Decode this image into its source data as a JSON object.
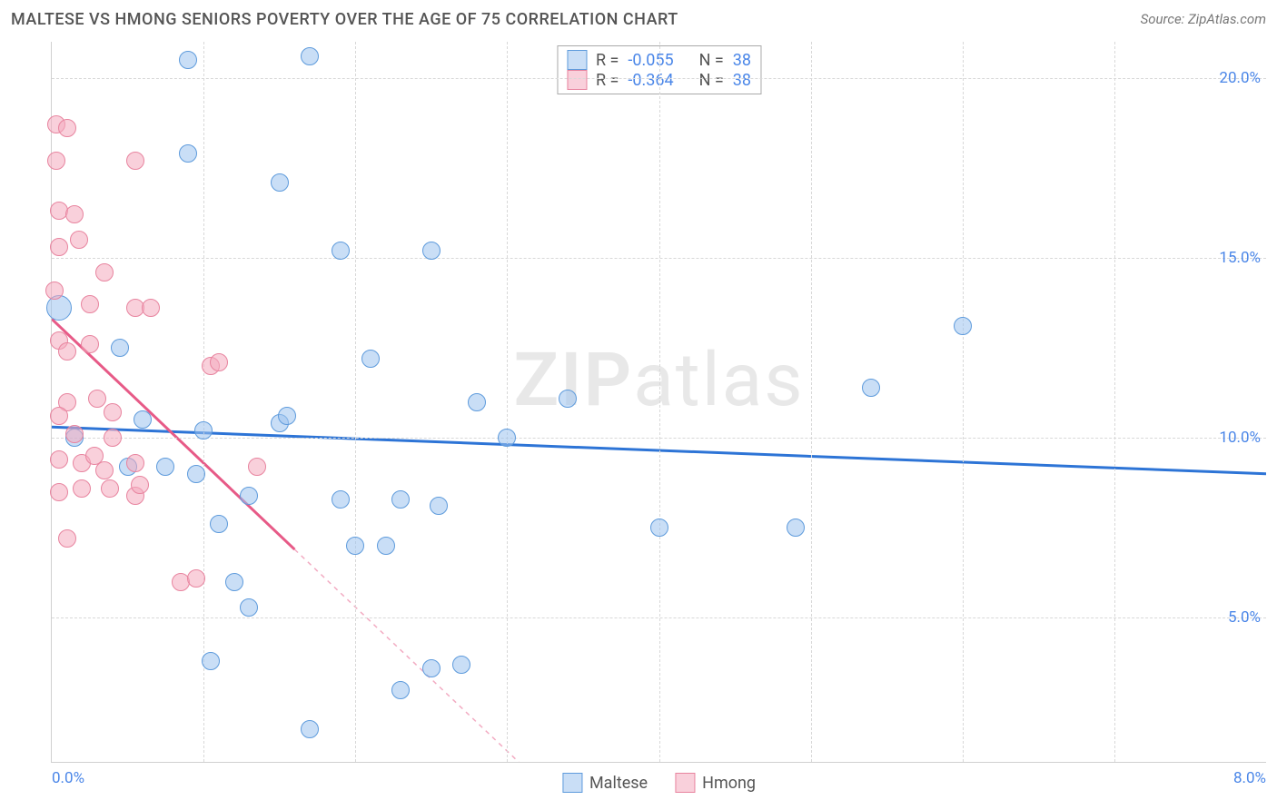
{
  "header": {
    "title": "MALTESE VS HMONG SENIORS POVERTY OVER THE AGE OF 75 CORRELATION CHART",
    "source": "Source: ZipAtlas.com"
  },
  "chart": {
    "type": "scatter",
    "ylabel": "Seniors Poverty Over the Age of 75",
    "xmin": 0.0,
    "xmax": 8.0,
    "ymin": 0.0,
    "ymax": 21.0,
    "ylim_visible_min": 1.0,
    "yticks": [
      5.0,
      10.0,
      15.0,
      20.0
    ],
    "ytick_labels": [
      "5.0%",
      "10.0%",
      "15.0%",
      "20.0%"
    ],
    "xgrid": [
      1.0,
      2.0,
      3.0,
      4.0,
      5.0,
      6.0,
      7.0
    ],
    "xtick_left": "0.0%",
    "xtick_right": "8.0%",
    "background_color": "#ffffff",
    "grid_color": "#d8d8d8",
    "axis_color": "#d0d0d0",
    "tick_color": "#4a86e8",
    "label_fontsize": 18,
    "tick_fontsize": 17,
    "watermark": {
      "zip": "ZIP",
      "atlas": "atlas",
      "color": "#e8e8e8",
      "fontsize": 82
    },
    "series": [
      {
        "name": "Maltese",
        "R": "-0.055",
        "N": "38",
        "point_fill": "rgba(157,195,238,0.55)",
        "point_stroke": "#5e9bdc",
        "point_radius": 10,
        "trend_color": "#2d74d6",
        "trend_width": 3,
        "trend": {
          "x1": 0.0,
          "y1": 10.3,
          "x2": 8.0,
          "y2": 9.0,
          "dashed_from_x": 8.0
        },
        "points": [
          {
            "x": 0.05,
            "y": 13.6,
            "r": 14
          },
          {
            "x": 0.9,
            "y": 20.5
          },
          {
            "x": 1.7,
            "y": 20.6
          },
          {
            "x": 0.9,
            "y": 17.9
          },
          {
            "x": 1.5,
            "y": 17.1
          },
          {
            "x": 1.9,
            "y": 15.2
          },
          {
            "x": 2.5,
            "y": 15.2
          },
          {
            "x": 2.1,
            "y": 12.2
          },
          {
            "x": 2.8,
            "y": 11.0
          },
          {
            "x": 3.4,
            "y": 11.1
          },
          {
            "x": 0.6,
            "y": 10.5
          },
          {
            "x": 1.0,
            "y": 10.2
          },
          {
            "x": 1.5,
            "y": 10.4
          },
          {
            "x": 1.55,
            "y": 10.6
          },
          {
            "x": 0.5,
            "y": 9.2
          },
          {
            "x": 0.75,
            "y": 9.2
          },
          {
            "x": 0.95,
            "y": 9.0
          },
          {
            "x": 1.3,
            "y": 8.4
          },
          {
            "x": 1.9,
            "y": 8.3
          },
          {
            "x": 2.3,
            "y": 8.3
          },
          {
            "x": 2.55,
            "y": 8.1
          },
          {
            "x": 1.1,
            "y": 7.6
          },
          {
            "x": 2.0,
            "y": 7.0
          },
          {
            "x": 2.2,
            "y": 7.0
          },
          {
            "x": 1.2,
            "y": 6.0
          },
          {
            "x": 1.3,
            "y": 5.3
          },
          {
            "x": 1.05,
            "y": 3.8
          },
          {
            "x": 2.5,
            "y": 3.6
          },
          {
            "x": 2.7,
            "y": 3.7
          },
          {
            "x": 2.3,
            "y": 3.0
          },
          {
            "x": 1.7,
            "y": 1.9
          },
          {
            "x": 4.0,
            "y": 7.5
          },
          {
            "x": 4.9,
            "y": 7.5
          },
          {
            "x": 5.4,
            "y": 11.4
          },
          {
            "x": 6.0,
            "y": 13.1
          },
          {
            "x": 3.0,
            "y": 10.0
          },
          {
            "x": 0.45,
            "y": 12.5
          },
          {
            "x": 0.15,
            "y": 10.0
          }
        ]
      },
      {
        "name": "Hmong",
        "R": "-0.364",
        "N": "38",
        "point_fill": "rgba(244,169,190,0.55)",
        "point_stroke": "#e8849f",
        "point_radius": 10,
        "trend_color": "#e75a87",
        "trend_width": 3,
        "trend": {
          "x1": 0.0,
          "y1": 13.3,
          "x2": 1.6,
          "y2": 6.9,
          "dashed_to_x": 3.1,
          "dashed_to_y": 0.9
        },
        "points": [
          {
            "x": 0.03,
            "y": 18.7
          },
          {
            "x": 0.1,
            "y": 18.6
          },
          {
            "x": 0.03,
            "y": 17.7
          },
          {
            "x": 0.55,
            "y": 17.7
          },
          {
            "x": 0.05,
            "y": 16.3
          },
          {
            "x": 0.15,
            "y": 16.2
          },
          {
            "x": 0.05,
            "y": 15.3
          },
          {
            "x": 0.18,
            "y": 15.5
          },
          {
            "x": 0.35,
            "y": 14.6
          },
          {
            "x": 0.02,
            "y": 14.1
          },
          {
            "x": 0.25,
            "y": 13.7
          },
          {
            "x": 0.55,
            "y": 13.6
          },
          {
            "x": 0.65,
            "y": 13.6
          },
          {
            "x": 0.05,
            "y": 12.7
          },
          {
            "x": 0.1,
            "y": 12.4
          },
          {
            "x": 0.25,
            "y": 12.6
          },
          {
            "x": 1.05,
            "y": 12.0
          },
          {
            "x": 1.1,
            "y": 12.1
          },
          {
            "x": 0.1,
            "y": 11.0
          },
          {
            "x": 0.3,
            "y": 11.1
          },
          {
            "x": 0.4,
            "y": 10.7
          },
          {
            "x": 0.05,
            "y": 10.6
          },
          {
            "x": 0.15,
            "y": 10.1
          },
          {
            "x": 0.05,
            "y": 9.4
          },
          {
            "x": 0.2,
            "y": 9.3
          },
          {
            "x": 0.28,
            "y": 9.5
          },
          {
            "x": 0.35,
            "y": 9.1
          },
          {
            "x": 0.55,
            "y": 9.3
          },
          {
            "x": 1.35,
            "y": 9.2
          },
          {
            "x": 0.2,
            "y": 8.6
          },
          {
            "x": 0.38,
            "y": 8.6
          },
          {
            "x": 0.55,
            "y": 8.4
          },
          {
            "x": 0.58,
            "y": 8.7
          },
          {
            "x": 0.05,
            "y": 8.5
          },
          {
            "x": 0.1,
            "y": 7.2
          },
          {
            "x": 0.85,
            "y": 6.0
          },
          {
            "x": 0.95,
            "y": 6.1
          },
          {
            "x": 0.4,
            "y": 10.0
          }
        ]
      }
    ],
    "legend_top": {
      "border_color": "#aaa",
      "R_label": "R =",
      "N_label": "N ="
    },
    "legend_bottom": {
      "items": [
        "Maltese",
        "Hmong"
      ]
    }
  }
}
